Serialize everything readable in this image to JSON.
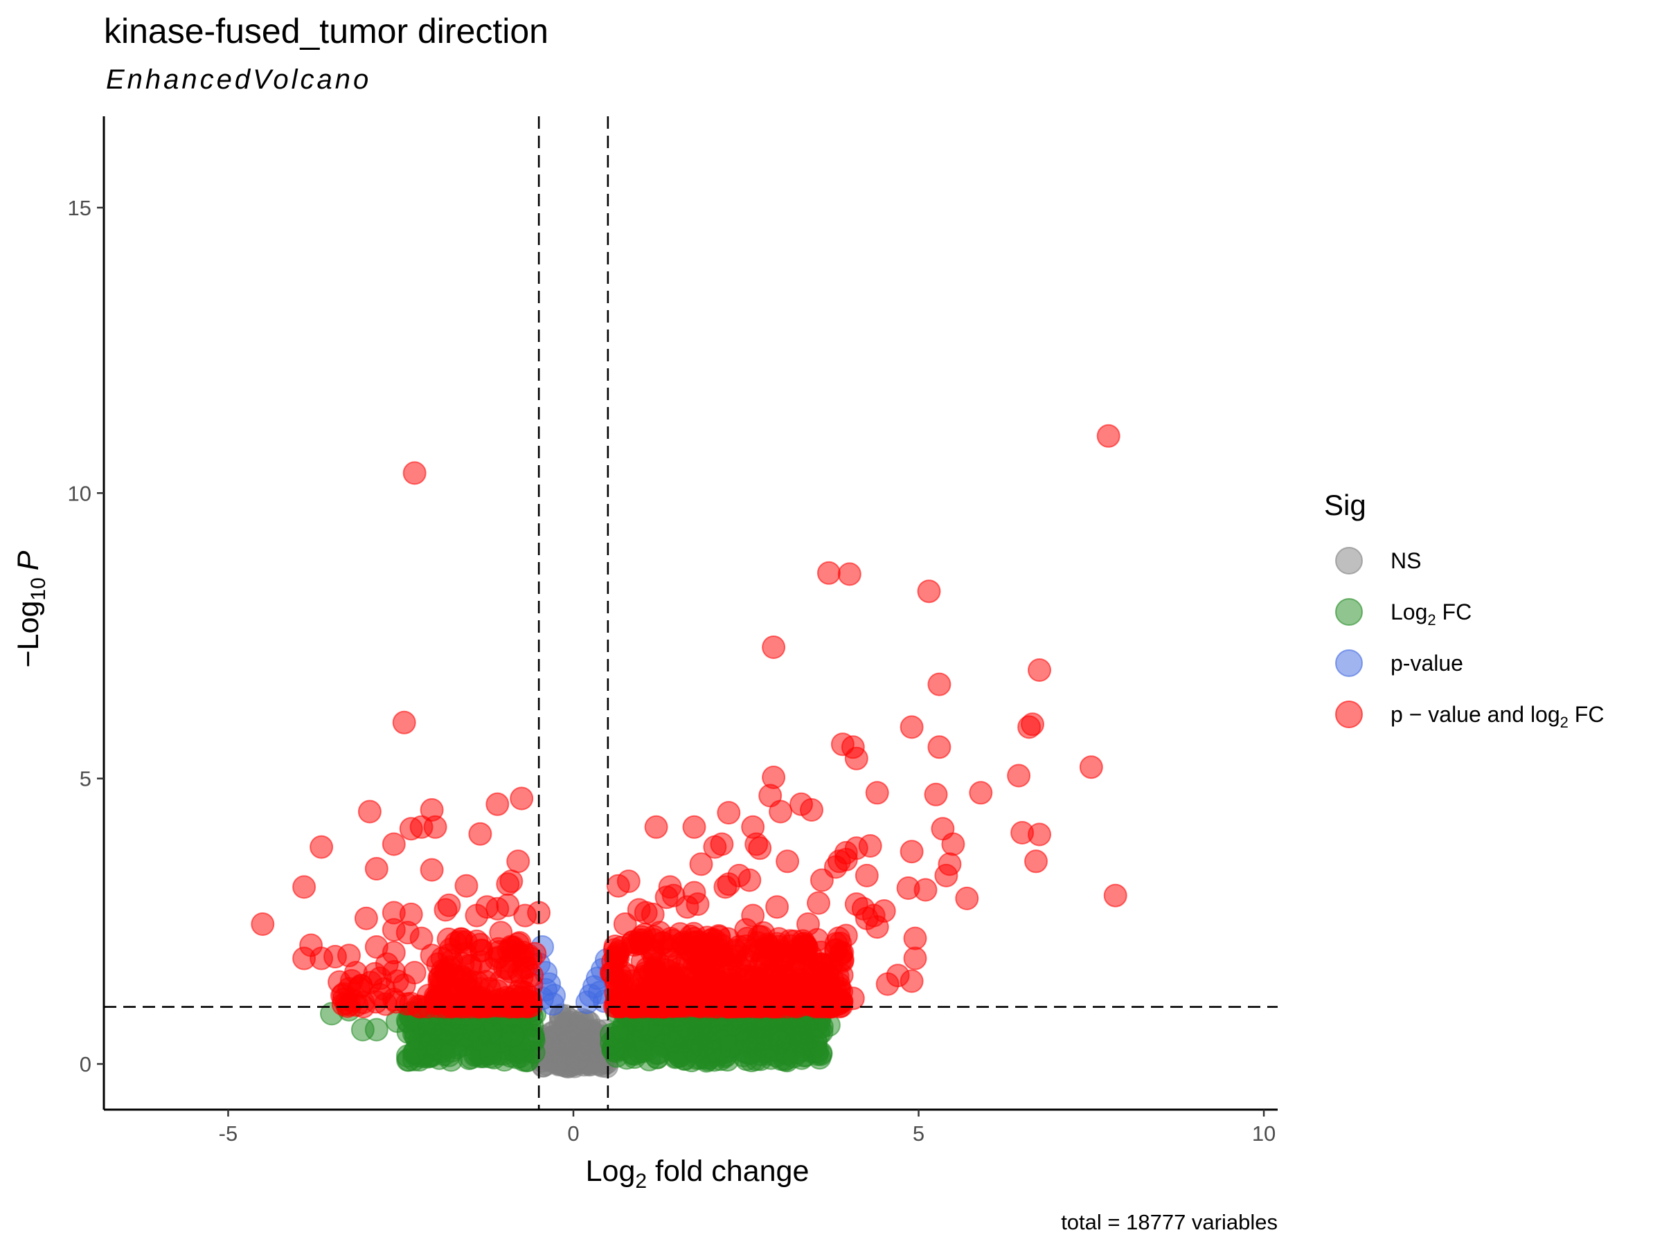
{
  "chart_data": {
    "type": "scatter",
    "title": "kinase-fused_tumor direction",
    "subtitle": "EnhancedVolcano",
    "xlabel": {
      "main": "Log",
      "sub": "2",
      "rest": " fold change"
    },
    "ylabel": {
      "pre": "−Log",
      "sub": "10",
      "post": "P"
    },
    "caption": "total = 18777 variables",
    "xlim": [
      -6.8,
      10.2
    ],
    "ylim": [
      -0.8,
      16.6
    ],
    "x_ticks": [
      -5,
      0,
      5,
      10
    ],
    "y_ticks": [
      0,
      5,
      10,
      15
    ],
    "x_tick_labels": [
      "-5",
      "0",
      "5",
      "10"
    ],
    "y_tick_labels": [
      "0",
      "5",
      "10",
      "15"
    ],
    "fc_cutoff": 0.5,
    "p_cutoff": 1.0,
    "legend": {
      "title": "Sig",
      "position": "right",
      "items": [
        {
          "key": "NS",
          "parts": [
            {
              "t": "NS"
            }
          ]
        },
        {
          "key": "FC",
          "parts": [
            {
              "t": "Log"
            },
            {
              "t": "2",
              "sub": true
            },
            {
              "t": " FC"
            }
          ]
        },
        {
          "key": "P",
          "parts": [
            {
              "t": "p-value"
            }
          ]
        },
        {
          "key": "FC_P",
          "parts": [
            {
              "t": "p − value and log"
            },
            {
              "t": "2",
              "sub": true
            },
            {
              "t": " FC"
            }
          ]
        }
      ]
    },
    "colors": {
      "NS": "#808080",
      "FC": "#228b22",
      "P": "#4169e1",
      "FC_P": "#ff0000"
    },
    "series": [
      {
        "key": "FC_P",
        "points": [
          [
            7.75,
            11.0
          ],
          [
            -2.3,
            10.35
          ],
          [
            3.7,
            8.6
          ],
          [
            4.0,
            8.58
          ],
          [
            5.15,
            8.28
          ],
          [
            2.9,
            7.3
          ],
          [
            6.75,
            6.9
          ],
          [
            5.3,
            6.65
          ],
          [
            -2.45,
            5.98
          ],
          [
            6.65,
            5.95
          ],
          [
            6.6,
            5.9
          ],
          [
            4.9,
            5.9
          ],
          [
            3.9,
            5.6
          ],
          [
            4.05,
            5.55
          ],
          [
            5.3,
            5.55
          ],
          [
            4.1,
            5.35
          ],
          [
            6.45,
            5.05
          ],
          [
            2.9,
            5.02
          ],
          [
            7.5,
            5.2
          ],
          [
            5.9,
            4.75
          ],
          [
            5.25,
            4.72
          ],
          [
            4.4,
            4.75
          ],
          [
            2.85,
            4.7
          ],
          [
            3.3,
            4.55
          ],
          [
            3.45,
            4.45
          ],
          [
            3.0,
            4.42
          ],
          [
            -1.1,
            4.55
          ],
          [
            -0.75,
            4.65
          ],
          [
            -2.05,
            4.45
          ],
          [
            -2.95,
            4.42
          ],
          [
            -2.35,
            4.12
          ],
          [
            -2.2,
            4.15
          ],
          [
            -2.0,
            4.15
          ],
          [
            1.2,
            4.15
          ],
          [
            1.75,
            4.15
          ],
          [
            2.25,
            4.4
          ],
          [
            2.6,
            4.15
          ],
          [
            5.35,
            4.12
          ],
          [
            6.5,
            4.05
          ],
          [
            6.75,
            4.02
          ],
          [
            -1.35,
            4.03
          ],
          [
            -2.6,
            3.85
          ],
          [
            -3.65,
            3.8
          ],
          [
            5.5,
            3.85
          ],
          [
            2.65,
            3.85
          ],
          [
            2.7,
            3.78
          ],
          [
            2.15,
            3.85
          ],
          [
            2.05,
            3.8
          ],
          [
            4.3,
            3.82
          ],
          [
            4.1,
            3.78
          ],
          [
            3.95,
            3.7
          ],
          [
            4.9,
            3.72
          ],
          [
            3.85,
            3.55
          ],
          [
            3.95,
            3.58
          ],
          [
            3.8,
            3.45
          ],
          [
            5.45,
            3.5
          ],
          [
            6.7,
            3.55
          ],
          [
            3.1,
            3.55
          ],
          [
            1.85,
            3.5
          ],
          [
            -0.8,
            3.55
          ],
          [
            -2.05,
            3.4
          ],
          [
            -2.85,
            3.42
          ],
          [
            4.25,
            3.3
          ],
          [
            5.4,
            3.3
          ],
          [
            3.6,
            3.22
          ],
          [
            -0.9,
            3.2
          ],
          [
            -0.95,
            3.15
          ],
          [
            1.4,
            3.1
          ],
          [
            0.65,
            3.12
          ],
          [
            0.8,
            3.2
          ],
          [
            -1.55,
            3.12
          ],
          [
            -3.9,
            3.1
          ],
          [
            2.4,
            3.3
          ],
          [
            2.55,
            3.22
          ],
          [
            2.25,
            3.15
          ],
          [
            2.2,
            3.1
          ],
          [
            1.75,
            3.0
          ],
          [
            5.1,
            3.05
          ],
          [
            4.85,
            3.08
          ],
          [
            7.85,
            2.95
          ],
          [
            5.7,
            2.9
          ],
          [
            1.45,
            2.95
          ],
          [
            1.35,
            2.92
          ],
          [
            2.95,
            2.75
          ],
          [
            3.55,
            2.82
          ],
          [
            4.1,
            2.8
          ],
          [
            4.2,
            2.72
          ],
          [
            4.5,
            2.68
          ],
          [
            4.35,
            2.6
          ],
          [
            2.6,
            2.6
          ],
          [
            1.8,
            2.8
          ],
          [
            1.65,
            2.75
          ],
          [
            0.95,
            2.7
          ],
          [
            1.05,
            2.65
          ],
          [
            1.15,
            2.62
          ],
          [
            -1.8,
            2.78
          ],
          [
            -1.85,
            2.7
          ],
          [
            -1.25,
            2.75
          ],
          [
            -1.1,
            2.72
          ],
          [
            -0.95,
            2.78
          ],
          [
            -0.5,
            2.65
          ],
          [
            -0.7,
            2.6
          ],
          [
            -1.4,
            2.6
          ],
          [
            -2.6,
            2.65
          ],
          [
            -2.35,
            2.62
          ],
          [
            -3.0,
            2.55
          ],
          [
            -4.5,
            2.45
          ],
          [
            -2.6,
            2.35
          ],
          [
            -2.4,
            2.3
          ],
          [
            -2.2,
            2.2
          ],
          [
            -1.4,
            2.15
          ],
          [
            -1.7,
            2.12
          ],
          [
            -2.85,
            2.05
          ],
          [
            -3.8,
            2.08
          ],
          [
            -3.25,
            1.9
          ],
          [
            -3.45,
            1.88
          ],
          [
            -3.65,
            1.85
          ],
          [
            -3.9,
            1.85
          ],
          [
            -2.6,
            1.95
          ],
          [
            -2.05,
            1.9
          ],
          [
            -1.9,
            1.85
          ],
          [
            -1.6,
            1.75
          ],
          [
            -3.15,
            1.6
          ],
          [
            -2.8,
            1.5
          ],
          [
            -2.55,
            1.45
          ],
          [
            -2.45,
            1.38
          ],
          [
            -3.35,
            1.2
          ],
          [
            -2.1,
            1.2
          ],
          [
            -2.0,
            1.18
          ],
          [
            -1.8,
            1.25
          ],
          [
            4.95,
            2.2
          ],
          [
            4.95,
            1.85
          ],
          [
            4.9,
            1.45
          ],
          [
            4.7,
            1.55
          ],
          [
            4.55,
            1.4
          ],
          [
            3.35,
            1.2
          ],
          [
            4.05,
            1.15
          ],
          [
            0.7,
            1.15
          ],
          [
            0.75,
            2.45
          ],
          [
            0.6,
            2.0
          ],
          [
            0.55,
            1.6
          ],
          [
            0.65,
            1.3
          ],
          [
            -0.65,
            1.9
          ],
          [
            -0.6,
            1.55
          ],
          [
            -0.7,
            1.25
          ],
          [
            -0.8,
            2.1
          ],
          [
            4.4,
            2.4
          ],
          [
            4.25,
            2.55
          ],
          [
            3.95,
            2.25
          ],
          [
            3.8,
            2.0
          ],
          [
            3.6,
            1.75
          ],
          [
            3.4,
            2.45
          ],
          [
            3.2,
            2.15
          ],
          [
            2.75,
            1.85
          ],
          [
            2.5,
            2.35
          ],
          [
            1.95,
            2.1
          ],
          [
            1.6,
            1.5
          ],
          [
            1.25,
            2.3
          ],
          [
            1.0,
            1.8
          ],
          [
            0.85,
            1.45
          ],
          [
            2.2,
            1.3
          ],
          [
            2.9,
            1.25
          ],
          [
            3.6,
            1.3
          ],
          [
            -1.2,
            1.65
          ],
          [
            -1.05,
            2.3
          ],
          [
            -0.9,
            1.8
          ],
          [
            -1.55,
            1.35
          ],
          [
            -2.3,
            1.6
          ],
          [
            -2.7,
            1.75
          ]
        ],
        "band": [
          [
            0.55,
            3.9,
            1.0,
            2.3,
            540,
            51
          ],
          [
            -2.0,
            -0.55,
            1.0,
            2.2,
            140,
            52
          ],
          [
            -3.4,
            -2.0,
            1.0,
            1.8,
            30,
            53
          ]
        ]
      },
      {
        "key": "P",
        "points": [
          [
            -0.45,
            2.05
          ],
          [
            -0.5,
            1.75
          ],
          [
            -0.4,
            1.6
          ],
          [
            -0.35,
            1.4
          ],
          [
            -0.28,
            1.2
          ],
          [
            -0.3,
            1.05
          ],
          [
            -0.4,
            1.3
          ],
          [
            -0.45,
            1.15
          ],
          [
            0.42,
            1.65
          ],
          [
            0.35,
            1.5
          ],
          [
            0.3,
            1.35
          ],
          [
            0.25,
            1.2
          ],
          [
            0.45,
            1.1
          ],
          [
            0.38,
            1.25
          ],
          [
            0.2,
            1.08
          ],
          [
            0.48,
            1.82
          ]
        ]
      },
      {
        "key": "FC",
        "points": [
          [
            -3.5,
            0.88
          ],
          [
            -3.25,
            0.95
          ],
          [
            -3.05,
            0.6
          ],
          [
            -2.85,
            0.6
          ],
          [
            -2.55,
            0.75
          ],
          [
            3.6,
            0.65
          ],
          [
            3.7,
            0.68
          ],
          [
            3.0,
            0.38
          ],
          [
            2.5,
            0.4
          ],
          [
            1.75,
            0.22
          ],
          [
            -2.3,
            0.2
          ],
          [
            -1.8,
            0.15
          ],
          [
            -1.2,
            0.18
          ]
        ],
        "band": [
          [
            0.55,
            3.6,
            0.05,
            0.98,
            420,
            61
          ],
          [
            -2.4,
            -0.55,
            0.05,
            0.98,
            200,
            62
          ]
        ]
      },
      {
        "key": "NS",
        "band": [
          [
            -0.5,
            0.5,
            -0.05,
            0.6,
            160,
            71
          ],
          [
            -0.25,
            0.25,
            0.6,
            0.9,
            20,
            72
          ]
        ]
      }
    ]
  }
}
